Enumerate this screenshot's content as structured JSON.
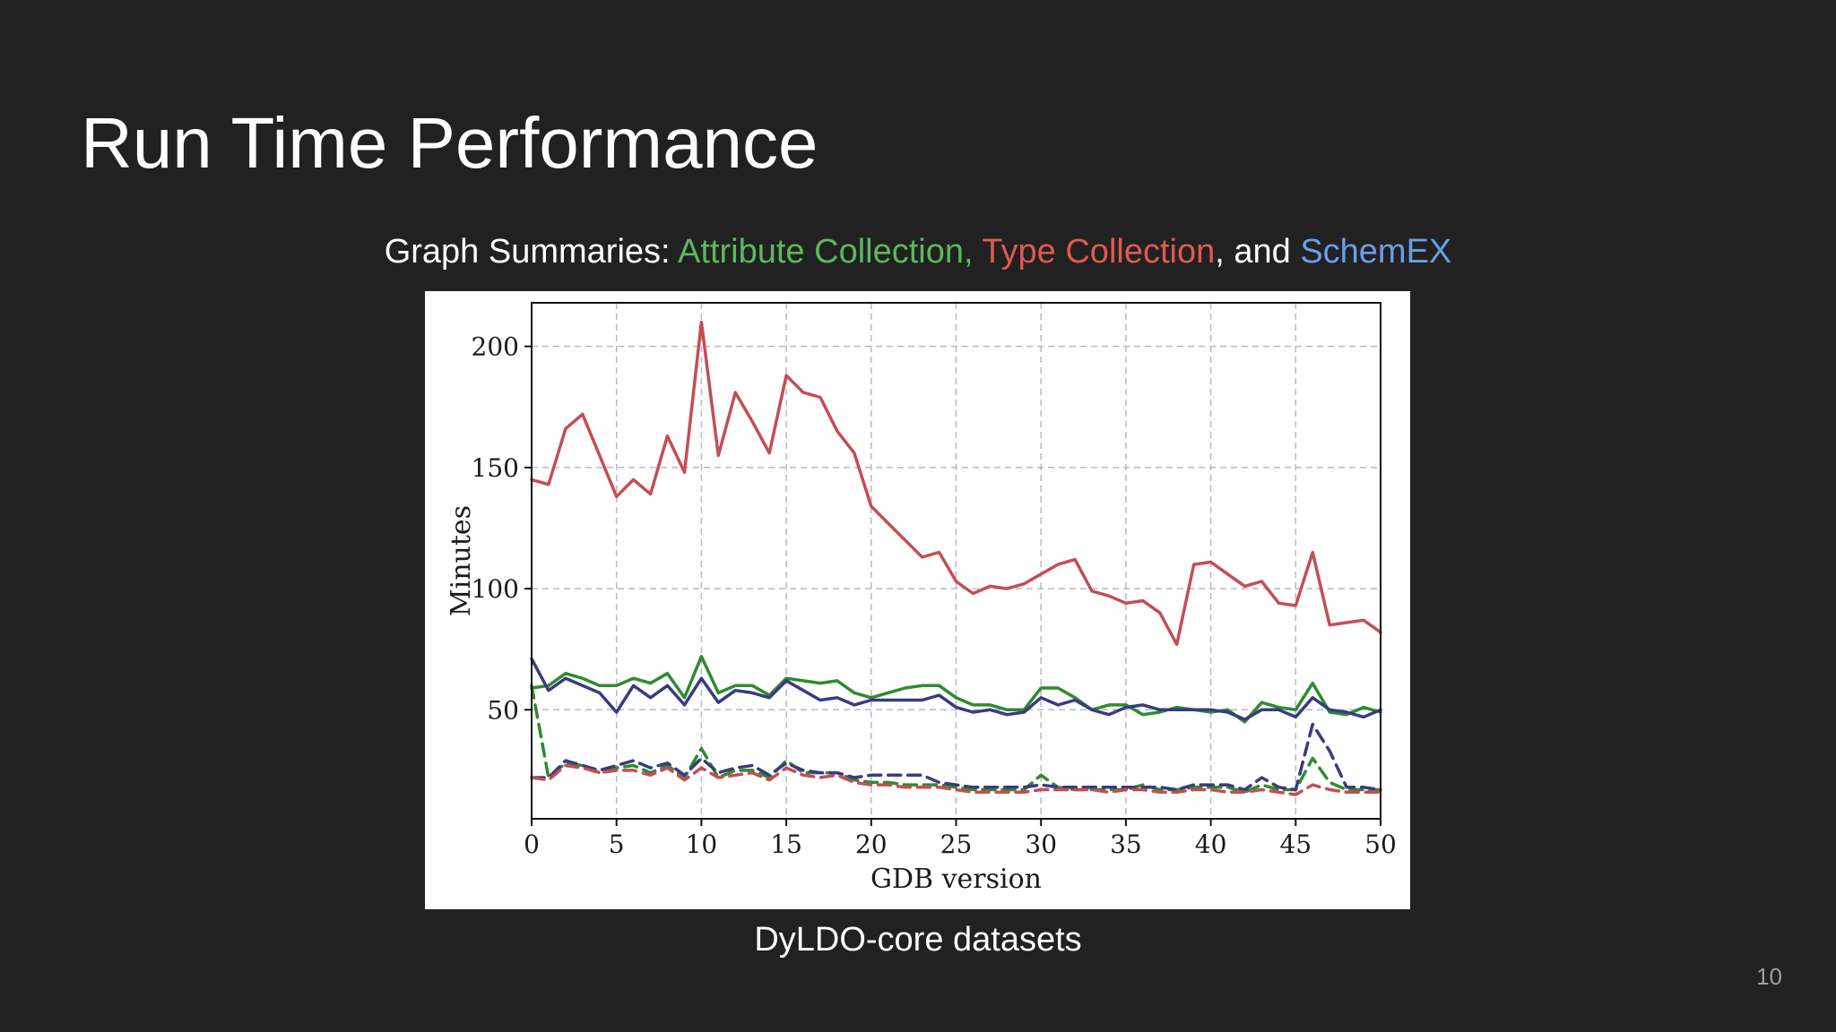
{
  "slide": {
    "title": "Run Time Performance",
    "subtitle": {
      "prefix": "Graph Summaries: ",
      "attr": "Attribute Collection,",
      "sep1": " ",
      "type": "Type Collection",
      "sep2": ", and ",
      "schemex": "SchemEX"
    },
    "caption": "DyLDO-core datasets",
    "page_number": "10"
  },
  "colors": {
    "attribute_collection": "#2e8b2e",
    "type_collection": "#c44e52",
    "schemex": "#3a3a80",
    "subtitle_attr": "#5cb85c",
    "subtitle_type": "#e05a4e",
    "subtitle_schemex": "#6a9ee8"
  },
  "chart_data": {
    "type": "line",
    "title": "",
    "xlabel": "GDB version",
    "ylabel": "Minutes",
    "xlim": [
      0,
      50
    ],
    "ylim": [
      5,
      218
    ],
    "xticks": [
      0,
      5,
      10,
      15,
      20,
      25,
      30,
      35,
      40,
      45,
      50
    ],
    "yticks": [
      50,
      100,
      150,
      200
    ],
    "grid": true,
    "legend": "none",
    "x": [
      0,
      1,
      2,
      3,
      4,
      5,
      6,
      7,
      8,
      9,
      10,
      11,
      12,
      13,
      14,
      15,
      16,
      17,
      18,
      19,
      20,
      21,
      22,
      23,
      24,
      25,
      26,
      27,
      28,
      29,
      30,
      31,
      32,
      33,
      34,
      35,
      36,
      37,
      38,
      39,
      40,
      41,
      42,
      43,
      44,
      45,
      46,
      47,
      48,
      49,
      50
    ],
    "series": [
      {
        "key": "type_solid",
        "color": "#c44e52",
        "dash": false,
        "values": [
          145,
          143,
          166,
          172,
          155,
          138,
          145,
          139,
          163,
          148,
          210,
          155,
          181,
          169,
          156,
          188,
          181,
          179,
          165,
          156,
          134,
          127,
          120,
          113,
          115,
          103,
          98,
          101,
          100,
          102,
          106,
          110,
          112,
          99,
          97,
          94,
          95,
          90,
          77,
          110,
          111,
          106,
          101,
          103,
          94,
          93,
          115,
          85,
          86,
          87,
          82
        ]
      },
      {
        "key": "attr_solid",
        "color": "#2e8b2e",
        "dash": false,
        "values": [
          59,
          60,
          65,
          63,
          60,
          60,
          63,
          61,
          65,
          55,
          72,
          57,
          60,
          60,
          56,
          63,
          62,
          61,
          62,
          57,
          55,
          57,
          59,
          60,
          60,
          55,
          52,
          52,
          50,
          50,
          59,
          59,
          55,
          50,
          52,
          52,
          48,
          49,
          51,
          50,
          49,
          50,
          45,
          53,
          51,
          50,
          61,
          49,
          48,
          51,
          49
        ]
      },
      {
        "key": "schemex_solid",
        "color": "#3a3a80",
        "dash": false,
        "values": [
          71,
          58,
          63,
          60,
          57,
          49,
          60,
          55,
          60,
          52,
          63,
          53,
          58,
          57,
          55,
          62,
          58,
          54,
          55,
          52,
          54,
          54,
          54,
          54,
          56,
          51,
          49,
          50,
          48,
          49,
          55,
          52,
          54,
          50,
          48,
          51,
          52,
          50,
          50,
          50,
          50,
          49,
          46,
          50,
          50,
          47,
          55,
          50,
          49,
          47,
          50
        ]
      },
      {
        "key": "attr_dashed",
        "color": "#2e8b2e",
        "dash": true,
        "values": [
          60,
          22,
          28,
          27,
          24,
          26,
          27,
          24,
          27,
          22,
          34,
          22,
          25,
          25,
          22,
          29,
          24,
          24,
          24,
          21,
          20,
          20,
          19,
          19,
          19,
          18,
          17,
          17,
          17,
          17,
          23,
          18,
          17,
          17,
          17,
          17,
          19,
          17,
          17,
          18,
          18,
          18,
          16,
          19,
          17,
          17,
          30,
          20,
          17,
          17,
          17
        ]
      },
      {
        "key": "schemex_dashed",
        "color": "#3a3a80",
        "dash": true,
        "values": [
          22,
          22,
          29,
          27,
          25,
          27,
          29,
          26,
          28,
          23,
          30,
          24,
          26,
          27,
          23,
          28,
          25,
          24,
          24,
          22,
          23,
          23,
          23,
          23,
          20,
          19,
          18,
          18,
          18,
          18,
          19,
          18,
          18,
          18,
          18,
          18,
          18,
          18,
          17,
          19,
          19,
          19,
          17,
          22,
          18,
          17,
          44,
          33,
          18,
          18,
          17
        ]
      },
      {
        "key": "type_dashed",
        "color": "#c44e52",
        "dash": true,
        "values": [
          22,
          21,
          27,
          26,
          24,
          25,
          25,
          23,
          26,
          21,
          26,
          22,
          23,
          24,
          21,
          26,
          23,
          22,
          23,
          20,
          19,
          19,
          18,
          18,
          18,
          17,
          16,
          16,
          16,
          16,
          17,
          17,
          17,
          17,
          16,
          17,
          17,
          16,
          16,
          17,
          17,
          16,
          16,
          17,
          16,
          15,
          19,
          17,
          16,
          16,
          16
        ]
      }
    ]
  }
}
